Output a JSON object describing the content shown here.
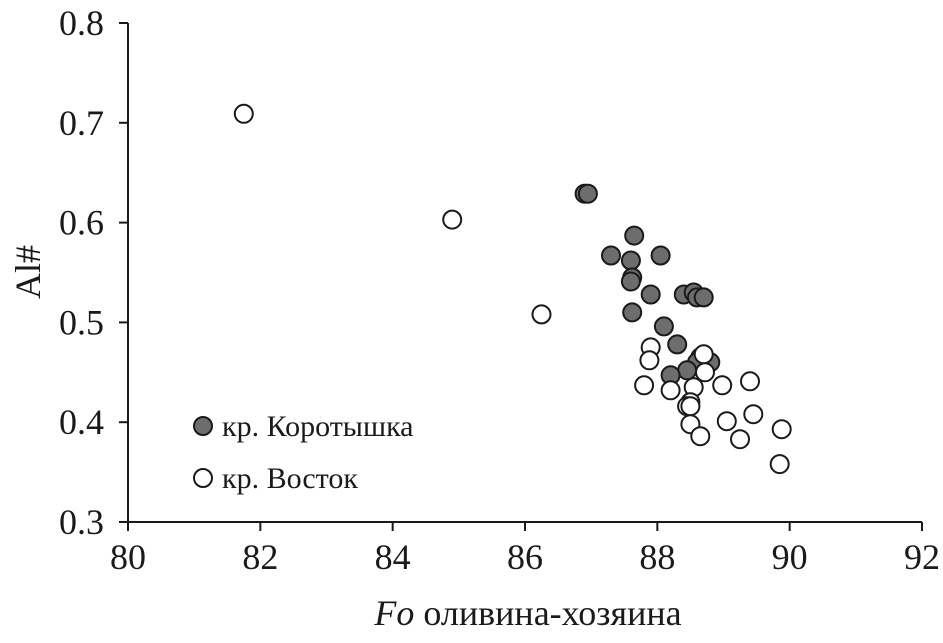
{
  "chart_data": {
    "type": "scatter",
    "title": "",
    "xlabel_italic": "Fo",
    "xlabel_rest": " оливина-хозяина",
    "ylabel": "Al#",
    "xlim": [
      80,
      92
    ],
    "ylim": [
      0.3,
      0.8
    ],
    "xticks": [
      "80",
      "82",
      "84",
      "86",
      "88",
      "90",
      "92"
    ],
    "yticks": [
      "0.3",
      "0.4",
      "0.5",
      "0.6",
      "0.7",
      "0.8"
    ],
    "grid": false,
    "legend_position": "bottom-left",
    "series": [
      {
        "name": "кр. Коротышка",
        "marker": "filled-circle",
        "fill": "#6d6d6d",
        "stroke": "#1a1a1a",
        "points": [
          [
            86.9,
            0.629
          ],
          [
            86.95,
            0.629
          ],
          [
            87.65,
            0.587
          ],
          [
            87.3,
            0.567
          ],
          [
            87.6,
            0.562
          ],
          [
            88.05,
            0.567
          ],
          [
            87.62,
            0.545
          ],
          [
            87.6,
            0.541
          ],
          [
            87.9,
            0.528
          ],
          [
            88.4,
            0.528
          ],
          [
            88.55,
            0.53
          ],
          [
            88.6,
            0.525
          ],
          [
            88.7,
            0.525
          ],
          [
            87.62,
            0.51
          ],
          [
            88.1,
            0.496
          ],
          [
            88.3,
            0.478
          ],
          [
            88.65,
            0.465
          ],
          [
            88.6,
            0.46
          ],
          [
            88.8,
            0.46
          ],
          [
            88.45,
            0.452
          ],
          [
            88.2,
            0.447
          ]
        ]
      },
      {
        "name": "кр. Восток",
        "marker": "open-circle",
        "fill": "#ffffff",
        "stroke": "#1a1a1a",
        "points": [
          [
            81.75,
            0.709
          ],
          [
            84.9,
            0.603
          ],
          [
            86.25,
            0.508
          ],
          [
            87.9,
            0.475
          ],
          [
            87.88,
            0.462
          ],
          [
            88.7,
            0.468
          ],
          [
            88.72,
            0.45
          ],
          [
            88.55,
            0.435
          ],
          [
            87.8,
            0.437
          ],
          [
            88.2,
            0.432
          ],
          [
            88.5,
            0.42
          ],
          [
            88.45,
            0.416
          ],
          [
            88.5,
            0.416
          ],
          [
            88.5,
            0.398
          ],
          [
            88.65,
            0.386
          ],
          [
            88.98,
            0.437
          ],
          [
            89.4,
            0.441
          ],
          [
            89.05,
            0.401
          ],
          [
            89.45,
            0.408
          ],
          [
            89.25,
            0.383
          ],
          [
            89.88,
            0.393
          ],
          [
            89.85,
            0.358
          ]
        ]
      }
    ]
  }
}
